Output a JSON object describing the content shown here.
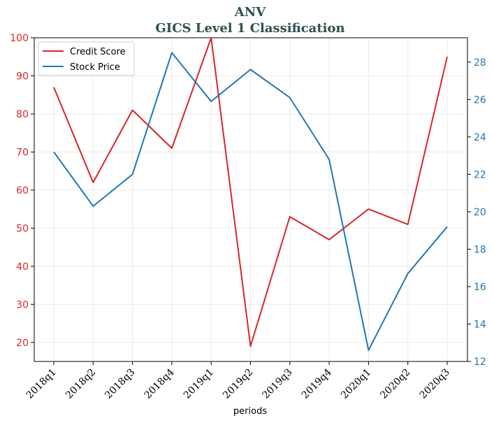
{
  "chart_data": {
    "type": "line",
    "title": "ANV",
    "subtitle": "GICS Level 1 Classification",
    "xlabel": "periods",
    "ylabel_left": "",
    "ylabel_right": "",
    "categories": [
      "2018q1",
      "2018q2",
      "2018q3",
      "2018q4",
      "2019q1",
      "2019q2",
      "2019q3",
      "2019q4",
      "2020q1",
      "2020q2",
      "2020q3"
    ],
    "series": [
      {
        "name": "Credit Score",
        "axis": "left",
        "color": "#d62728",
        "values": [
          87,
          62,
          81,
          71,
          100,
          19,
          53,
          47,
          55,
          51,
          95
        ]
      },
      {
        "name": "Stock Price",
        "axis": "right",
        "color": "#1f77b4",
        "values": [
          23.2,
          20.3,
          22.0,
          28.5,
          25.9,
          27.6,
          26.1,
          22.8,
          12.6,
          16.7,
          19.2
        ]
      }
    ],
    "ylim_left": [
      15,
      100
    ],
    "yticks_left": [
      20,
      30,
      40,
      50,
      60,
      70,
      80,
      90,
      100
    ],
    "ylim_right": [
      12,
      29.3
    ],
    "yticks_right": [
      12,
      14,
      16,
      18,
      20,
      22,
      24,
      26,
      28
    ],
    "grid": true,
    "legend_position": "top-left",
    "left_tick_color": "#d62728",
    "right_tick_color": "#1f77b4"
  }
}
